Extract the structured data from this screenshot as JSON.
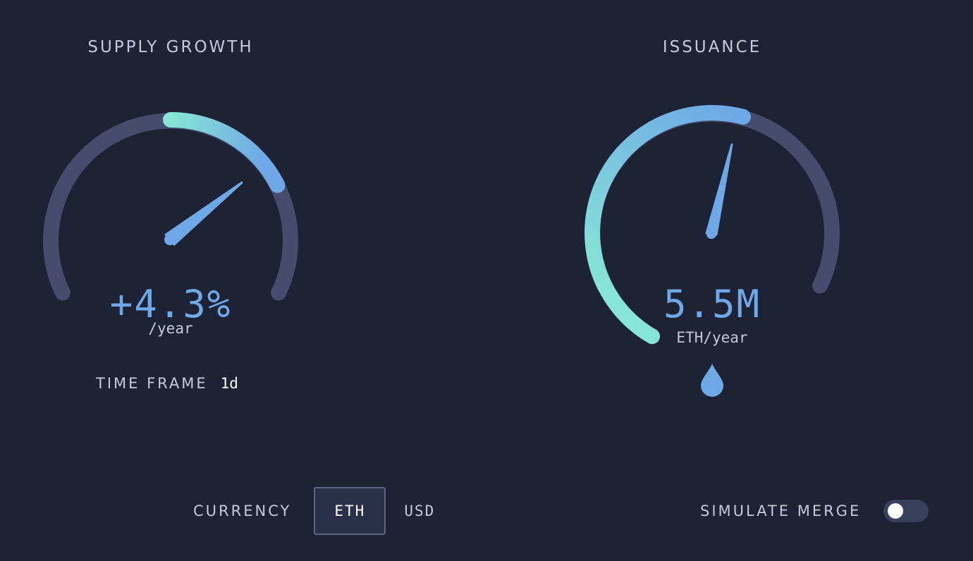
{
  "supply_growth": {
    "title": "SUPPLY GROWTH",
    "value": "+4.3%",
    "unit": "/year",
    "gauge_fill_fraction": 0.21,
    "timeframe_label": "TIME FRAME",
    "timeframe_value": "1d"
  },
  "issuance": {
    "title": "ISSUANCE",
    "value": "5.5M",
    "unit": "ETH/year",
    "gauge_fill_fraction": 0.55,
    "icon": "drop-icon"
  },
  "currency": {
    "label": "CURRENCY",
    "options": [
      "ETH",
      "USD"
    ],
    "selected": "ETH"
  },
  "simulate_merge": {
    "label": "SIMULATE MERGE",
    "enabled": false
  },
  "colors": {
    "background": "#1d2235",
    "track": "#474b6c",
    "gradient_start": "#86e5d6",
    "gradient_end": "#6fa8e6",
    "value_text": "#6fa8e6",
    "label_text": "#c4c9dc"
  }
}
